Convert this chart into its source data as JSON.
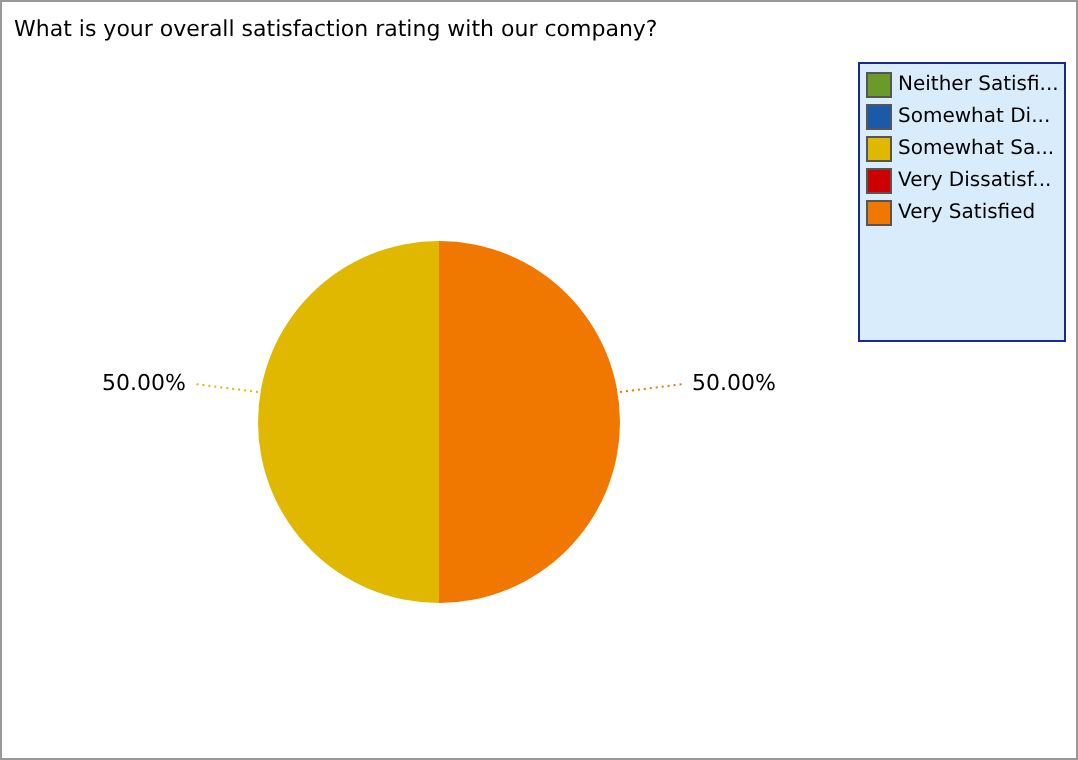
{
  "chart_data": {
    "type": "pie",
    "title": "What is your overall satisfaction rating with our company?",
    "categories": [
      "Neither Satisfi...",
      "Somewhat Di...",
      "Somewhat Sa...",
      "Very Dissatisf...",
      "Very Satisfied"
    ],
    "values": [
      0,
      0,
      50,
      0,
      50
    ],
    "colors": [
      "#6a9a2a",
      "#1a5aa8",
      "#e0b800",
      "#cc0000",
      "#f07800"
    ],
    "value_labels": [
      null,
      null,
      "50.00%",
      null,
      "50.00%"
    ],
    "legend": "top right"
  }
}
